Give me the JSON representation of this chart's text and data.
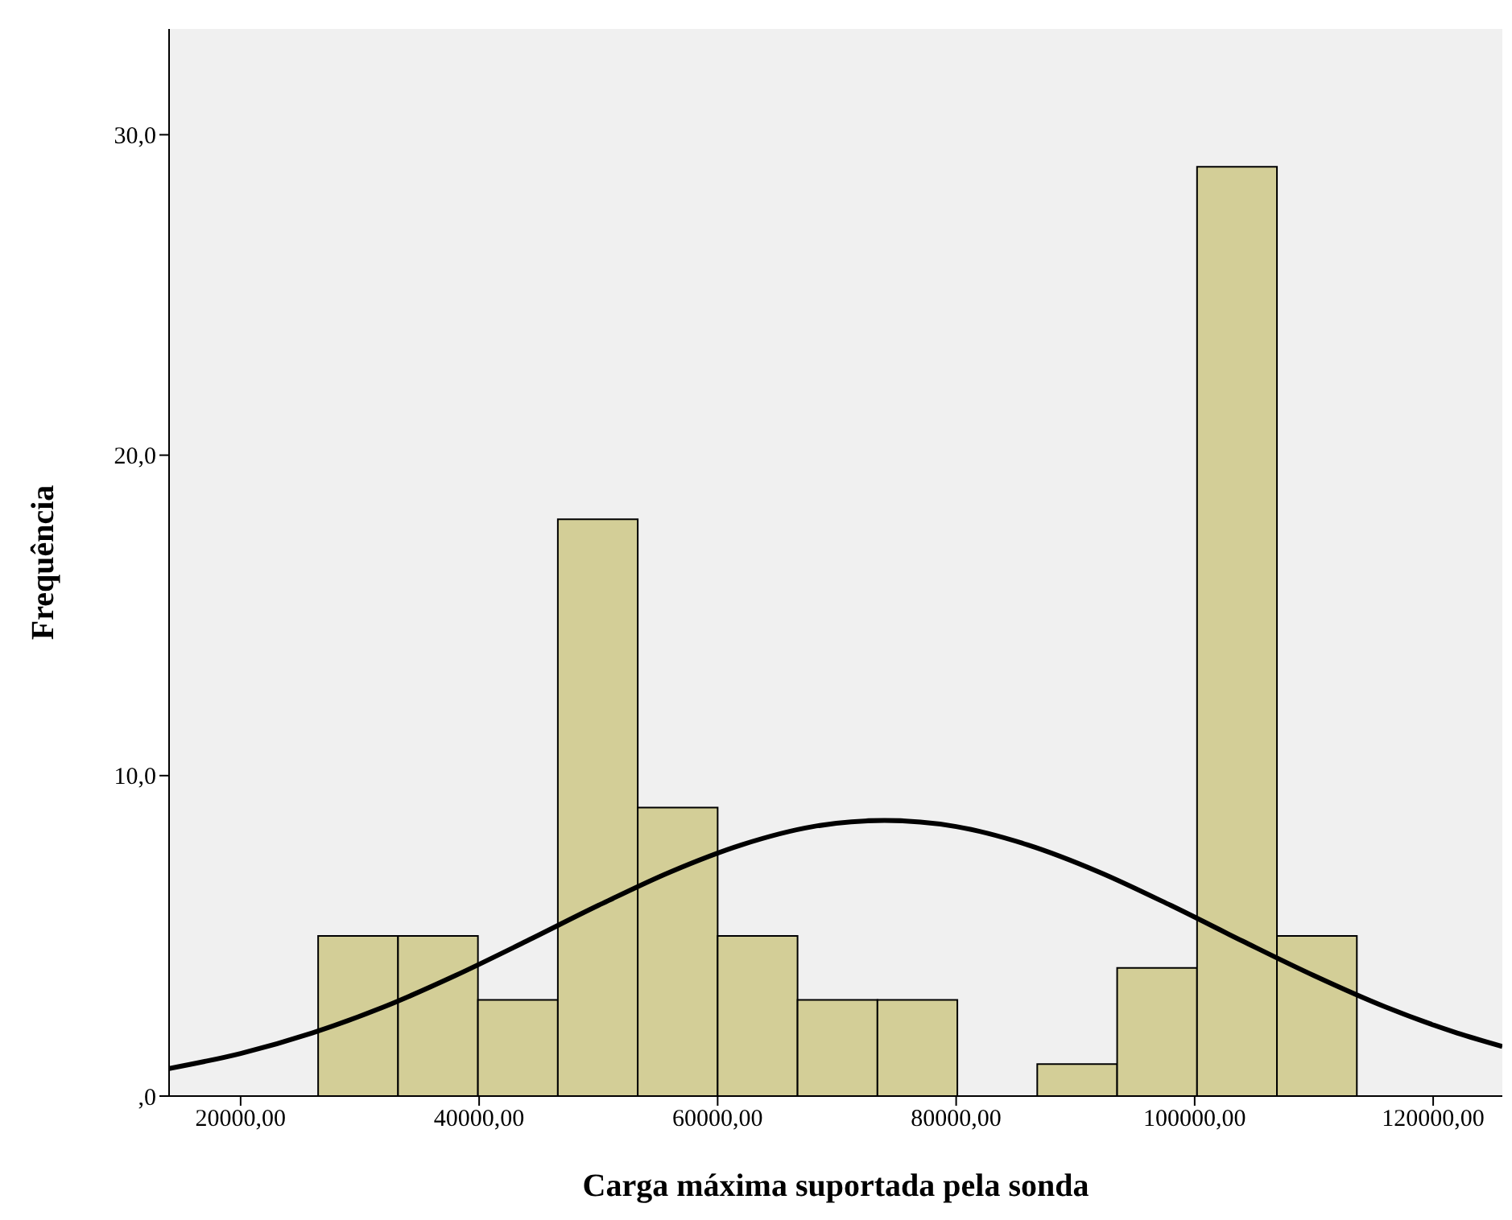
{
  "chart_data": {
    "type": "histogram",
    "xlabel": "Carga máxima suportada pela sonda",
    "ylabel": "Frequência",
    "bins": [
      26500,
      33200,
      39900,
      46600,
      53300,
      60000,
      66700,
      73400,
      80100,
      86800,
      93500,
      100200,
      106900,
      113600
    ],
    "values": [
      5,
      5,
      3,
      18,
      9,
      5,
      3,
      3,
      0,
      1,
      4,
      29,
      5
    ],
    "color": "#d3ce97",
    "series": [
      {
        "type": "line",
        "color": "#000000",
        "x": [
          14000,
          20000,
          26000,
          32000,
          38000,
          44000,
          50000,
          56000,
          62000,
          68000,
          74000,
          80000,
          86000,
          92000,
          98000,
          104000,
          110000,
          116000,
          122000,
          125800
        ],
        "values": [
          0.86,
          1.33,
          1.97,
          2.78,
          3.76,
          4.84,
          5.95,
          6.99,
          7.84,
          8.41,
          8.6,
          8.41,
          7.84,
          6.99,
          5.95,
          4.84,
          3.76,
          2.78,
          1.97,
          1.55
        ]
      }
    ],
    "xlim": [
      14000,
      125800
    ],
    "xticks": [
      {
        "value": 20000,
        "label": "20000,00"
      },
      {
        "value": 40000,
        "label": "40000,00"
      },
      {
        "value": 60000,
        "label": "60000,00"
      },
      {
        "value": 80000,
        "label": "80000,00"
      },
      {
        "value": 100000,
        "label": "100000,00"
      },
      {
        "value": 120000,
        "label": "120000,00"
      }
    ],
    "ylim": [
      0,
      33.3
    ],
    "yticks": [
      {
        "value": 0,
        "label": ",0"
      },
      {
        "value": 10,
        "label": "10,0"
      },
      {
        "value": 20,
        "label": "20,0"
      },
      {
        "value": 30,
        "label": "30,0"
      }
    ],
    "grid": false,
    "marker": "none",
    "line_style": "solid"
  }
}
